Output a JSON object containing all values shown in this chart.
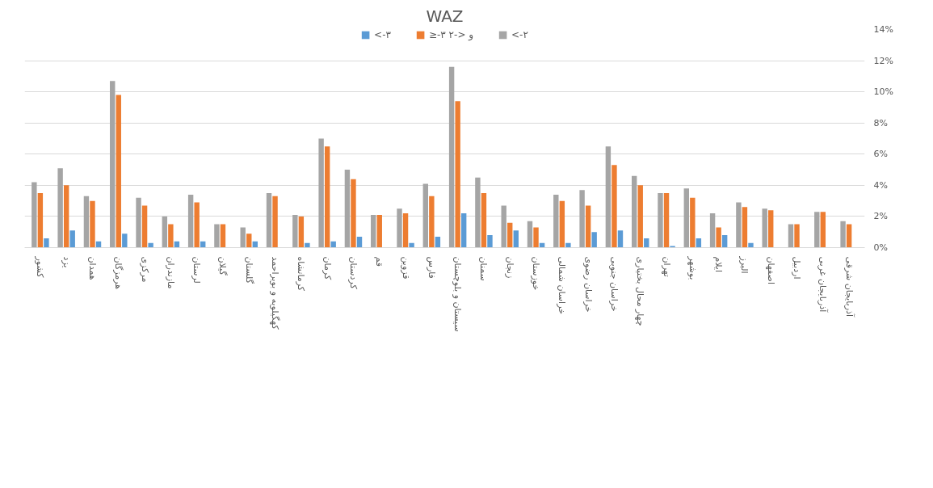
{
  "chart_data": {
    "type": "bar",
    "title": "WAZ",
    "categories": [
      "کشور",
      "یزد",
      "همدان",
      "هرمزگان",
      "مرکزی",
      "مازندران",
      "لرستان",
      "گیلان",
      "گلستان",
      "کهگیلویه و بویراحمد",
      "کرمانشاه",
      "کرمان",
      "کردستان",
      "قم",
      "قزوین",
      "فارس",
      "سیستان و بلوچستان",
      "سمنان",
      "زنجان",
      "خوزستان",
      "خراسان شمالی",
      "خراسان رضوی",
      "خراسان جنوبی",
      "چهار محال بختیاری",
      "تهران",
      "بوشهر",
      "ایلام",
      "البرز",
      "اصفهان",
      "اردبیل",
      "آذربایجان غربی",
      "آذربایجان شرقی"
    ],
    "series": [
      {
        "name": "<-۲",
        "color": "#a5a5a5",
        "values": [
          4.2,
          5.1,
          3.3,
          10.7,
          3.2,
          2.0,
          3.4,
          1.5,
          1.3,
          3.5,
          2.1,
          7.0,
          5.0,
          2.1,
          2.5,
          4.1,
          11.6,
          4.5,
          2.7,
          1.7,
          3.4,
          3.7,
          6.5,
          4.6,
          3.5,
          3.8,
          2.2,
          2.9,
          2.5,
          1.5,
          2.3,
          1.7
        ]
      },
      {
        "name": "≥-۳ و <-۲",
        "color": "#ed7d31",
        "values": [
          3.5,
          4.0,
          3.0,
          9.8,
          2.7,
          1.5,
          2.9,
          1.5,
          0.9,
          3.3,
          2.0,
          6.5,
          4.4,
          2.1,
          2.2,
          3.3,
          9.4,
          3.5,
          1.6,
          1.3,
          3.0,
          2.7,
          5.3,
          4.0,
          3.5,
          3.2,
          1.3,
          2.6,
          2.4,
          1.5,
          2.3,
          1.5
        ]
      },
      {
        "name": "<-۳",
        "color": "#5b9bd5",
        "values": [
          0.6,
          1.1,
          0.4,
          0.9,
          0.3,
          0.4,
          0.4,
          0,
          0.4,
          null,
          0.3,
          0.4,
          0.7,
          null,
          0.3,
          0.7,
          2.2,
          0.8,
          1.1,
          0.3,
          0.3,
          1.0,
          1.1,
          0.6,
          0.1,
          0.6,
          0.8,
          0.3,
          null,
          0,
          0,
          0
        ]
      }
    ],
    "ylim": [
      0,
      14
    ],
    "yticks": [
      {
        "value": 0,
        "label": "0%"
      },
      {
        "value": 2,
        "label": "2%"
      },
      {
        "value": 4,
        "label": "4%"
      },
      {
        "value": 6,
        "label": "6%"
      },
      {
        "value": 8,
        "label": "8%"
      },
      {
        "value": 10,
        "label": "10%"
      },
      {
        "value": 12,
        "label": "12%"
      },
      {
        "value": 14,
        "label": "14%"
      }
    ],
    "grid": "y",
    "legend": "top"
  }
}
